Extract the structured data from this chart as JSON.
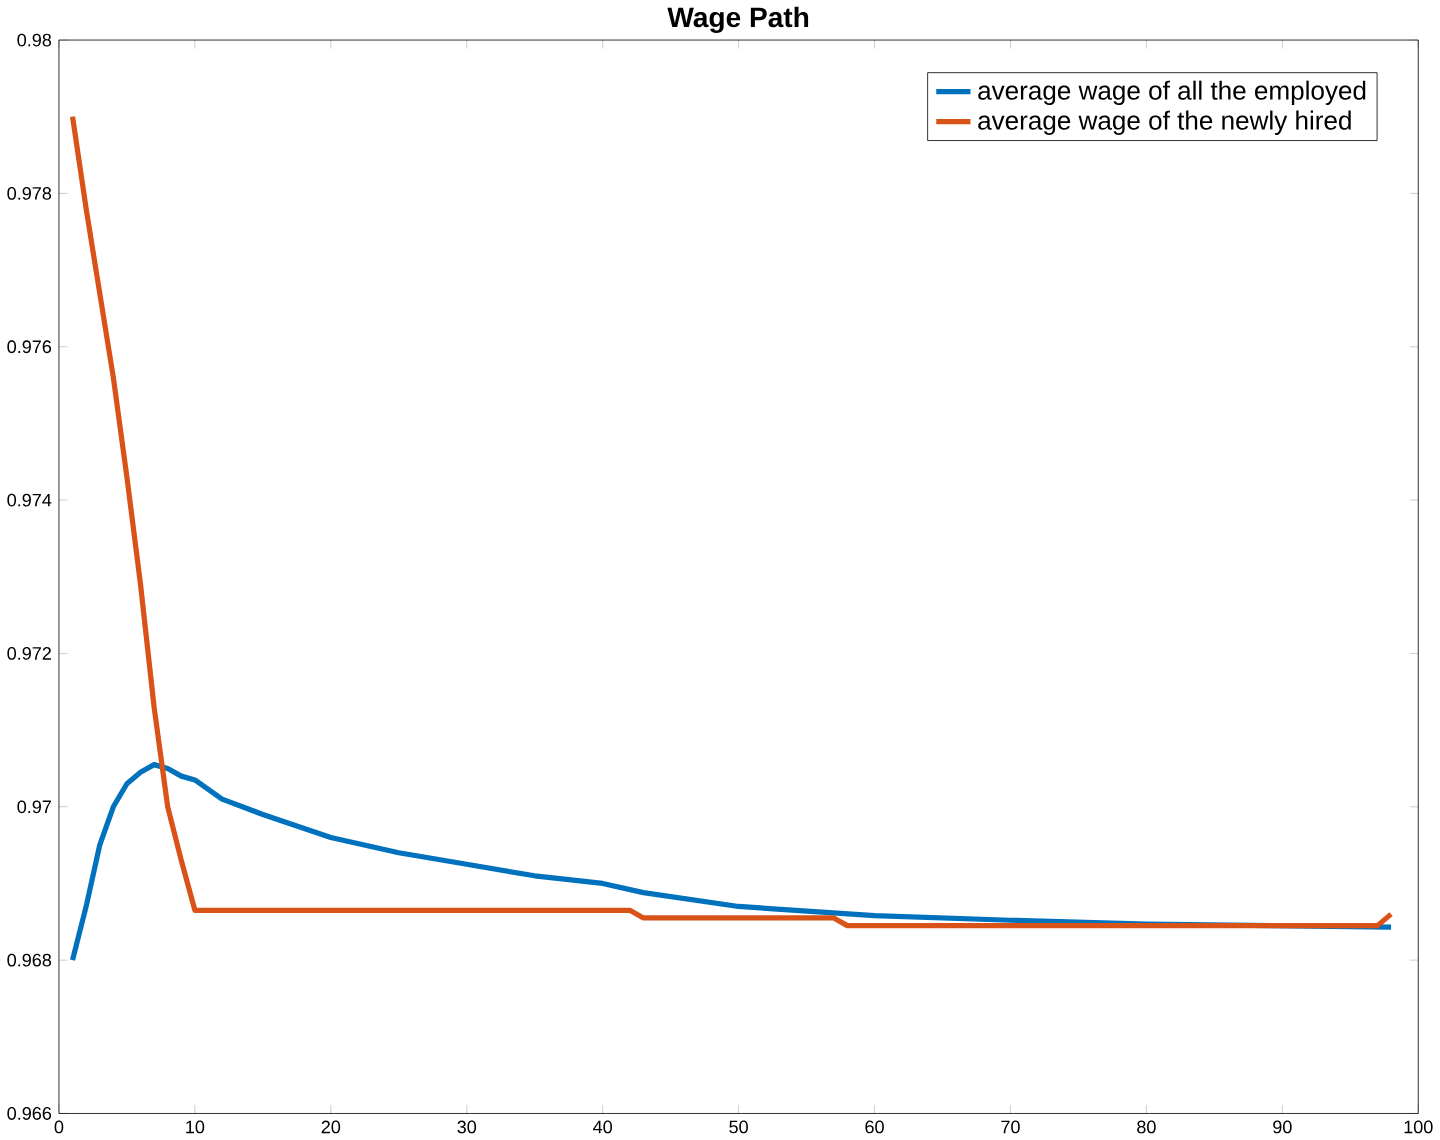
{
  "chart_data": {
    "type": "line",
    "title": "Wage Path",
    "xlim": [
      0,
      100
    ],
    "xticks": [
      0,
      10,
      20,
      30,
      40,
      50,
      60,
      70,
      80,
      90,
      100
    ],
    "ylim": [
      0.966,
      0.98
    ],
    "yticks": [
      0.966,
      0.968,
      0.97,
      0.972,
      0.974,
      0.976,
      0.978,
      0.98
    ],
    "legend": "top right",
    "grid": false,
    "series": [
      {
        "name": "average wage of all the employed",
        "color": "#0072bd",
        "x": [
          1,
          2,
          3,
          4,
          5,
          6,
          7,
          8,
          9,
          10,
          12,
          15,
          20,
          25,
          30,
          35,
          40,
          43,
          50,
          60,
          70,
          80,
          98
        ],
        "values": [
          0.968,
          0.9687,
          0.9695,
          0.97,
          0.9703,
          0.97045,
          0.97055,
          0.9705,
          0.9704,
          0.97035,
          0.9701,
          0.9699,
          0.9696,
          0.9694,
          0.96925,
          0.9691,
          0.969,
          0.96888,
          0.9687,
          0.96858,
          0.96852,
          0.96847,
          0.96843
        ]
      },
      {
        "name": "average wage of the newly hired",
        "color": "#d95319",
        "x": [
          1,
          2,
          3,
          4,
          5,
          6,
          7,
          8,
          9,
          10,
          42,
          43,
          57,
          58,
          97,
          98
        ],
        "values": [
          0.979,
          0.9778,
          0.9767,
          0.9756,
          0.9743,
          0.9729,
          0.9713,
          0.97,
          0.9693,
          0.96865,
          0.96865,
          0.96855,
          0.96855,
          0.96845,
          0.96845,
          0.9686
        ]
      }
    ]
  }
}
